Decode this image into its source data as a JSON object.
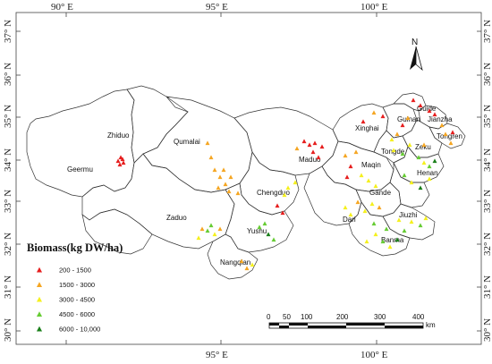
{
  "map": {
    "lon_labels": [
      "90° E",
      "95° E",
      "100° E"
    ],
    "lat_labels": [
      "37° N",
      "36° N",
      "35° N",
      "34° N",
      "33° N",
      "32° N",
      "31° N",
      "30° N"
    ],
    "north_label": "N",
    "regions": [
      "Zhiduo",
      "Geermu",
      "Qumalai",
      "Maduo",
      "Chengduo",
      "Zaduo",
      "Yushu",
      "Nangqian",
      "Xinghai",
      "Guide",
      "Guinan",
      "Jianzha",
      "Tongren",
      "Tongde",
      "Zeku",
      "Henan",
      "Maqin",
      "Gande",
      "Dari",
      "Jiuzhi",
      "Banma"
    ]
  },
  "legend": {
    "title": "Biomass(kg DW/ha)",
    "classes": [
      {
        "label": "200 - 1500",
        "color": "#e61e1e"
      },
      {
        "label": "1500 - 3000",
        "color": "#f5a623"
      },
      {
        "label": "3000 - 4500",
        "color": "#f5f01e"
      },
      {
        "label": "4500 - 6000",
        "color": "#66cc33"
      },
      {
        "label": "6000 - 10,000",
        "color": "#1a7f1a"
      }
    ]
  },
  "scale_bar": {
    "ticks": [
      "0",
      "50",
      "100",
      "200",
      "300",
      "400"
    ],
    "unit": "km"
  }
}
